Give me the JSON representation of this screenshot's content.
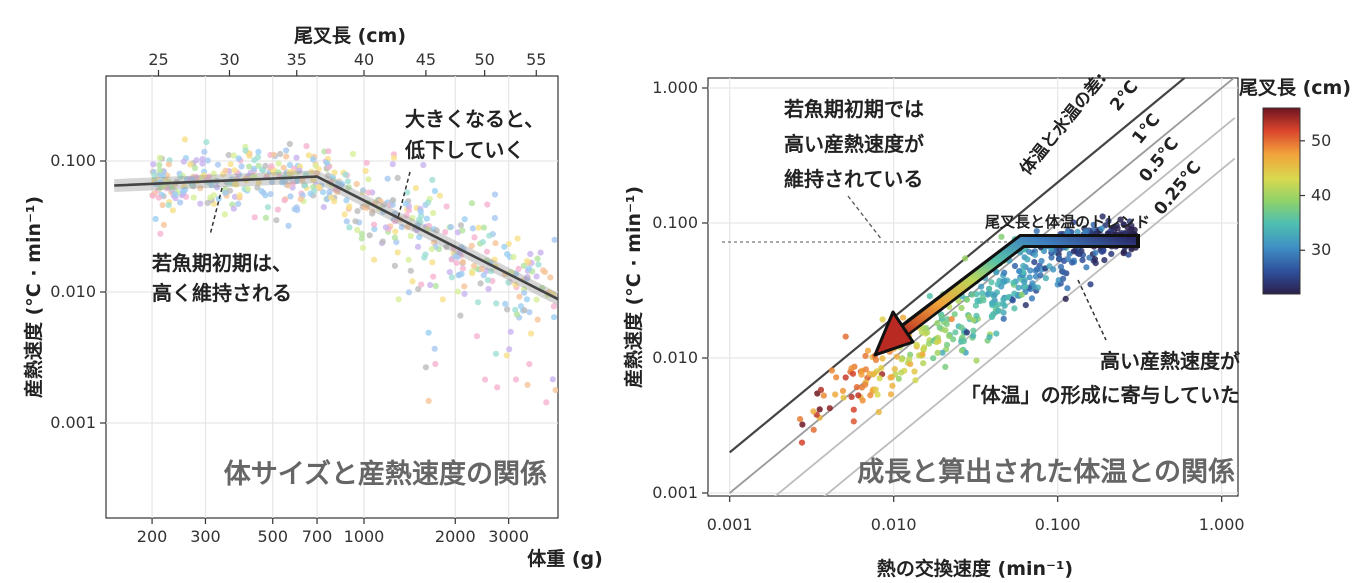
{
  "chart_data": [
    {
      "type": "scatter",
      "caption": "体サイズと産熱速度の関係",
      "xlabel": "体重 (g)",
      "ylabel": "産熱速度 (°C · min⁻¹)",
      "top_axis_label": "尾叉長 (cm)",
      "x_scale": "log",
      "y_scale": "log",
      "xlim": [
        140,
        5000
      ],
      "ylim": [
        0.0002,
        0.5
      ],
      "grid": true,
      "x_ticks": [
        {
          "value": 200,
          "label": "200"
        },
        {
          "value": 300,
          "label": "300"
        },
        {
          "value": 500,
          "label": "500"
        },
        {
          "value": 700,
          "label": "700"
        },
        {
          "value": 1000,
          "label": "1000"
        },
        {
          "value": 2000,
          "label": "2000"
        },
        {
          "value": 3000,
          "label": "3000"
        }
      ],
      "y_ticks": [
        {
          "value": 0.001,
          "label": "0.001"
        },
        {
          "value": 0.01,
          "label": "0.010"
        },
        {
          "value": 0.1,
          "label": "0.100"
        }
      ],
      "top_ticks": [
        {
          "value": 210,
          "label": "25"
        },
        {
          "value": 360,
          "label": "30"
        },
        {
          "value": 600,
          "label": "35"
        },
        {
          "value": 1000,
          "label": "40"
        },
        {
          "value": 1600,
          "label": "45"
        },
        {
          "value": 2500,
          "label": "50"
        },
        {
          "value": 3700,
          "label": "55"
        }
      ],
      "trend": [
        [
          150,
          0.065
        ],
        [
          700,
          0.076
        ],
        [
          4500,
          0.0085
        ]
      ],
      "annotations": [
        {
          "lines": [
            "若魚期初期は、",
            "高く維持される"
          ]
        },
        {
          "lines": [
            "大きくなると、",
            "低下していく"
          ]
        }
      ]
    },
    {
      "type": "scatter",
      "caption": "成長と算出された体温との関係",
      "xlabel": "熱の交換速度 (min⁻¹)",
      "ylabel": "産熱速度 (°C · min⁻¹)",
      "x_scale": "log",
      "y_scale": "log",
      "xlim": [
        0.0008,
        1.1
      ],
      "ylim": [
        0.0008,
        1.1
      ],
      "grid": true,
      "x_ticks": [
        {
          "value": 0.001,
          "label": "0.001"
        },
        {
          "value": 0.01,
          "label": "0.010"
        },
        {
          "value": 0.1,
          "label": "0.100"
        },
        {
          "value": 1,
          "label": "1.000"
        }
      ],
      "y_ticks": [
        {
          "value": 0.001,
          "label": "0.001"
        },
        {
          "value": 0.01,
          "label": "0.010"
        },
        {
          "value": 0.1,
          "label": "0.100"
        },
        {
          "value": 1,
          "label": "1.000"
        }
      ],
      "diagonal_title": "体温と水温の差:",
      "diagonals": [
        {
          "label": "2°C",
          "factor": 2
        },
        {
          "label": "1°C",
          "factor": 1
        },
        {
          "label": "0.5°C",
          "factor": 0.5
        },
        {
          "label": "0.25°C",
          "factor": 0.25
        }
      ],
      "arrow_label": "尾叉長と体温のトレンド",
      "annotations": [
        {
          "lines": [
            "若魚期初期では",
            "高い産熱速度が",
            "維持されている"
          ]
        },
        {
          "lines": [
            "高い産熱速度が",
            "「体温」の形成に寄与していた"
          ]
        }
      ],
      "colorbar": {
        "title": "尾叉長 (cm)",
        "range": [
          22,
          56
        ],
        "ticks": [
          {
            "value": 30,
            "label": "30"
          },
          {
            "value": 40,
            "label": "40"
          },
          {
            "value": 50,
            "label": "50"
          }
        ]
      }
    }
  ]
}
